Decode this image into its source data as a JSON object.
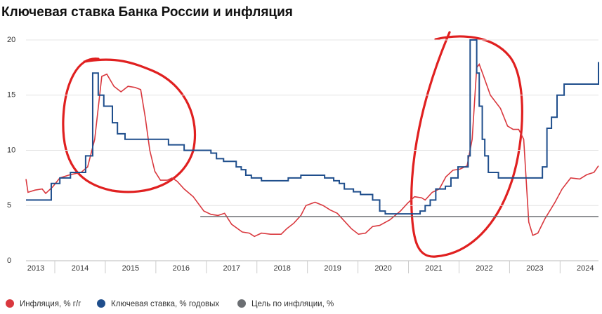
{
  "chart_data": {
    "type": "line",
    "title": "Ключевая ставка Банка России и инфляция",
    "xlim": [
      2013.43,
      2024.76
    ],
    "xticks": [
      2013,
      2014,
      2015,
      2016,
      2017,
      2018,
      2019,
      2020,
      2021,
      2022,
      2023,
      2024
    ],
    "ylim": [
      0,
      20
    ],
    "yticks": [
      0,
      5,
      10,
      15,
      20
    ],
    "grid": true,
    "legend": "bottom",
    "series": [
      {
        "name": "Инфляция, % г/г",
        "color": "#d9383e",
        "x": [
          2013.43,
          2013.47,
          2013.61,
          2013.75,
          2013.82,
          2013.96,
          2014.1,
          2014.31,
          2014.52,
          2014.65,
          2014.79,
          2014.93,
          2015.03,
          2015.17,
          2015.31,
          2015.45,
          2015.59,
          2015.7,
          2015.79,
          2015.88,
          2015.98,
          2016.09,
          2016.23,
          2016.32,
          2016.42,
          2016.56,
          2016.74,
          2016.95,
          2017.09,
          2017.23,
          2017.36,
          2017.5,
          2017.71,
          2017.85,
          2017.95,
          2018.09,
          2018.27,
          2018.48,
          2018.59,
          2018.73,
          2018.87,
          2018.97,
          2019.15,
          2019.31,
          2019.45,
          2019.59,
          2019.73,
          2019.87,
          2020.01,
          2020.15,
          2020.29,
          2020.43,
          2020.63,
          2020.84,
          2020.98,
          2021.12,
          2021.26,
          2021.33,
          2021.47,
          2021.61,
          2021.74,
          2021.88,
          2022.02,
          2022.16,
          2022.26,
          2022.35,
          2022.4,
          2022.48,
          2022.62,
          2022.82,
          2022.96,
          2023.07,
          2023.18,
          2023.28,
          2023.32,
          2023.38,
          2023.46,
          2023.56,
          2023.7,
          2023.9,
          2024.04,
          2024.21,
          2024.39,
          2024.53,
          2024.67,
          2024.76
        ],
        "values": [
          7.4,
          6.2,
          6.4,
          6.5,
          6.1,
          6.7,
          7.5,
          7.8,
          8.0,
          8.5,
          11,
          16.7,
          16.9,
          15.8,
          15.3,
          15.8,
          15.7,
          15.5,
          13,
          10,
          8.1,
          7.3,
          7.3,
          7.5,
          7.2,
          6.5,
          5.8,
          4.5,
          4.2,
          4.1,
          4.3,
          3.3,
          2.6,
          2.5,
          2.2,
          2.5,
          2.4,
          2.4,
          2.9,
          3.4,
          4.1,
          5.0,
          5.3,
          5.0,
          4.6,
          4.3,
          3.6,
          2.9,
          2.4,
          2.5,
          3.1,
          3.2,
          3.7,
          4.5,
          5.2,
          5.8,
          5.7,
          5.5,
          6.2,
          6.5,
          7.6,
          8.2,
          8.3,
          8.6,
          11,
          17.5,
          17.8,
          16.8,
          15.0,
          13.8,
          12.2,
          11.9,
          11.9,
          11,
          8,
          3.5,
          2.3,
          2.5,
          3.8,
          5.3,
          6.5,
          7.5,
          7.4,
          7.8,
          8.0,
          8.6
        ]
      },
      {
        "name": "Ключевая ставка, % годовых",
        "color": "#1f4e8c",
        "step": "post",
        "x": [
          2013.43,
          2013.93,
          2014.1,
          2014.31,
          2014.61,
          2014.75,
          2014.86,
          2014.97,
          2015.14,
          2015.24,
          2015.39,
          2016.25,
          2016.56,
          2017.09,
          2017.2,
          2017.34,
          2017.59,
          2017.69,
          2017.78,
          2017.89,
          2018.09,
          2018.62,
          2018.87,
          2019.34,
          2019.52,
          2019.63,
          2019.73,
          2019.91,
          2020.05,
          2020.29,
          2020.43,
          2020.54,
          2021.23,
          2021.33,
          2021.43,
          2021.54,
          2021.73,
          2021.84,
          2021.98,
          2022.18,
          2022.22,
          2022.35,
          2022.4,
          2022.46,
          2022.51,
          2022.58,
          2022.78,
          2023.65,
          2023.74,
          2023.83,
          2023.94,
          2024.08,
          2024.76
        ],
        "values": [
          5.5,
          7,
          7.5,
          8,
          9.5,
          17,
          15,
          14,
          12.5,
          11.5,
          11,
          10.5,
          10,
          9.75,
          9.25,
          9,
          8.5,
          8.25,
          7.75,
          7.5,
          7.25,
          7.5,
          7.75,
          7.5,
          7.25,
          7,
          6.5,
          6.25,
          6,
          5.5,
          4.5,
          4.25,
          4.5,
          5,
          5.5,
          6.5,
          6.75,
          7.5,
          8.5,
          9.5,
          20,
          17,
          14,
          11,
          9.5,
          8,
          7.5,
          8.5,
          12,
          13,
          15,
          16,
          18
        ]
      },
      {
        "name": "Цель по инфляции, %",
        "color": "#6b6e72",
        "x": [
          2016.88,
          2024.76
        ],
        "values": [
          4,
          4
        ]
      }
    ]
  }
}
